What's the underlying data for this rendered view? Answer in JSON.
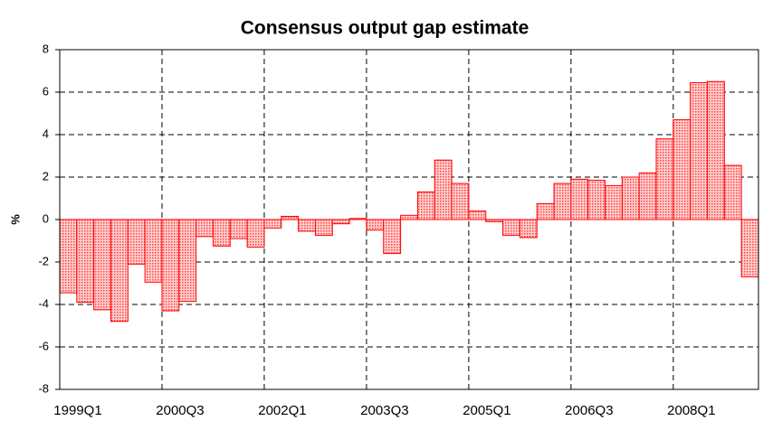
{
  "chart_data": {
    "type": "bar",
    "title": "Consensus output gap estimate",
    "y_label": "%",
    "categories": [
      "1999Q1",
      null,
      null,
      null,
      null,
      null,
      "2000Q3",
      null,
      null,
      null,
      null,
      null,
      "2002Q1",
      null,
      null,
      null,
      null,
      null,
      "2003Q3",
      null,
      null,
      null,
      null,
      null,
      "2005Q1",
      null,
      null,
      null,
      null,
      null,
      "2006Q3",
      null,
      null,
      null,
      null,
      null,
      "2008Q1",
      null,
      null,
      null,
      null
    ],
    "values": [
      -3.45,
      -3.9,
      -4.25,
      -4.8,
      -2.1,
      -2.95,
      -4.3,
      -3.85,
      -0.8,
      -1.25,
      -0.9,
      -1.3,
      -0.4,
      0.15,
      -0.55,
      -0.75,
      -0.2,
      0.05,
      -0.5,
      -1.6,
      0.2,
      1.3,
      2.8,
      1.7,
      0.4,
      -0.1,
      -0.75,
      -0.85,
      0.75,
      1.7,
      1.9,
      1.85,
      1.6,
      2.0,
      2.2,
      3.8,
      4.7,
      6.45,
      6.5,
      2.55,
      -2.7
    ],
    "color": "#ff0000",
    "ylim": [
      -8,
      8
    ],
    "yticks": [
      -8,
      -6,
      -4,
      -2,
      0,
      2,
      4,
      6,
      8
    ],
    "grid": true
  }
}
